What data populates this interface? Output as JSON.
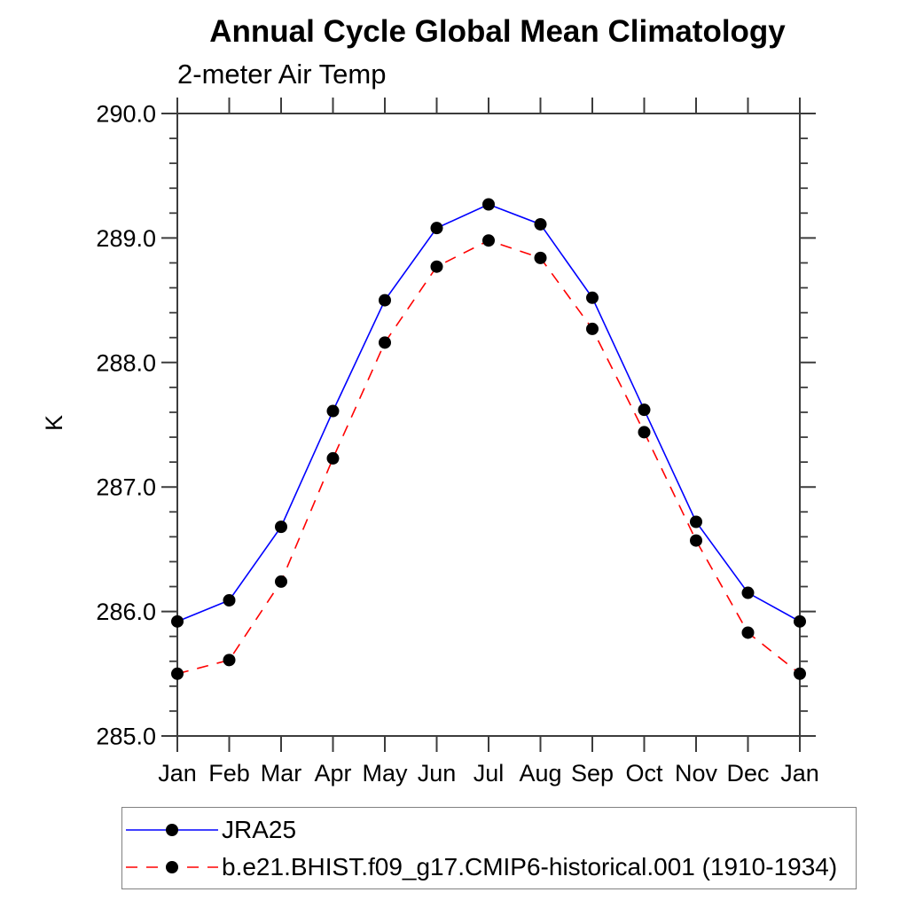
{
  "page": {
    "background": "#ffffff"
  },
  "chart_data": {
    "type": "line",
    "title": "Annual Cycle Global Mean Climatology",
    "subtitle": "2-meter Air Temp",
    "xlabel": "",
    "ylabel": "K",
    "categories": [
      "Jan",
      "Feb",
      "Mar",
      "Apr",
      "May",
      "Jun",
      "Jul",
      "Aug",
      "Sep",
      "Oct",
      "Nov",
      "Dec",
      "Jan"
    ],
    "y_ticks": [
      285.0,
      286.0,
      287.0,
      288.0,
      289.0,
      290.0
    ],
    "y_tick_labels": [
      "285.0",
      "286.0",
      "287.0",
      "288.0",
      "289.0",
      "290.0"
    ],
    "y_minor_step": 0.2,
    "ylim": [
      285.0,
      290.0
    ],
    "grid": false,
    "legend_position": "bottom-left",
    "series": [
      {
        "name": "JRA25",
        "color": "#0000ff",
        "line_style": "solid",
        "marker": "filled-circle",
        "marker_color": "#000000",
        "values": [
          285.92,
          286.09,
          286.68,
          287.61,
          288.5,
          289.08,
          289.27,
          289.11,
          288.52,
          287.62,
          286.72,
          286.15,
          285.92
        ]
      },
      {
        "name": "b.e21.BHIST.f09_g17.CMIP6-historical.001 (1910-1934)",
        "color": "#ff0000",
        "line_style": "dashed",
        "marker": "filled-circle",
        "marker_color": "#000000",
        "values": [
          285.5,
          285.61,
          286.24,
          287.23,
          288.16,
          288.77,
          288.98,
          288.84,
          288.27,
          287.44,
          286.57,
          285.83,
          285.5
        ]
      }
    ],
    "colors": {
      "axis": "#3c3c3c",
      "text": "#000000",
      "legend_border": "#808080"
    }
  }
}
